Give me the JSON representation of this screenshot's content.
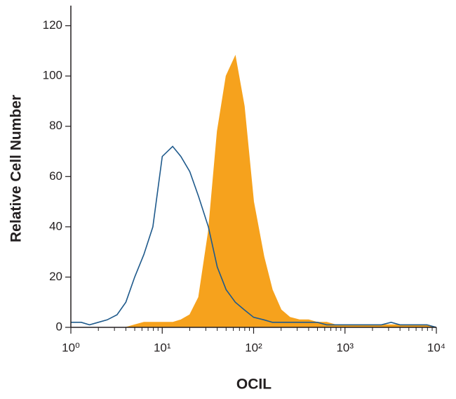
{
  "chart_data": {
    "type": "line",
    "x_label": "OCIL",
    "y_label": "Relative Cell Number",
    "x": [
      1,
      1.3,
      1.6,
      2,
      2.5,
      3.2,
      4,
      5,
      6.3,
      7.9,
      10,
      13,
      16,
      20,
      25,
      32,
      40,
      50,
      63,
      79,
      100,
      130,
      160,
      200,
      250,
      320,
      400,
      500,
      630,
      790,
      1000,
      1300,
      1600,
      2000,
      2500,
      3200,
      4000,
      5000,
      6300,
      7900,
      10000
    ],
    "series": [
      {
        "color": "#f6a21d",
        "fill": true,
        "values": [
          0,
          0,
          0,
          0,
          0,
          0,
          0,
          1,
          2,
          2,
          2,
          2,
          3,
          5,
          12,
          38,
          78,
          100,
          108,
          88,
          50,
          28,
          15,
          7,
          4,
          3,
          3,
          2,
          2,
          1,
          1,
          1,
          1,
          1,
          1,
          1,
          1,
          1,
          1,
          1,
          0
        ]
      },
      {
        "color": "#1f5a8c",
        "fill": false,
        "values": [
          2,
          2,
          1,
          2,
          3,
          5,
          10,
          20,
          29,
          40,
          68,
          72,
          68,
          62,
          52,
          40,
          24,
          15,
          10,
          7,
          4,
          3,
          2,
          2,
          2,
          2,
          2,
          2,
          1,
          1,
          1,
          1,
          1,
          1,
          1,
          2,
          1,
          1,
          1,
          1,
          0
        ]
      }
    ],
    "xscale": "log",
    "xlim": [
      1,
      10000
    ],
    "xticks": [
      {
        "value": 1,
        "label": "10⁰"
      },
      {
        "value": 10,
        "label": "10¹"
      },
      {
        "value": 100,
        "label": "10²"
      },
      {
        "value": 1000,
        "label": "10³"
      },
      {
        "value": 10000,
        "label": "10⁴"
      }
    ],
    "ylim": [
      0,
      128
    ],
    "yticks": [
      0,
      20,
      40,
      60,
      80,
      100,
      120
    ],
    "grid": false
  }
}
